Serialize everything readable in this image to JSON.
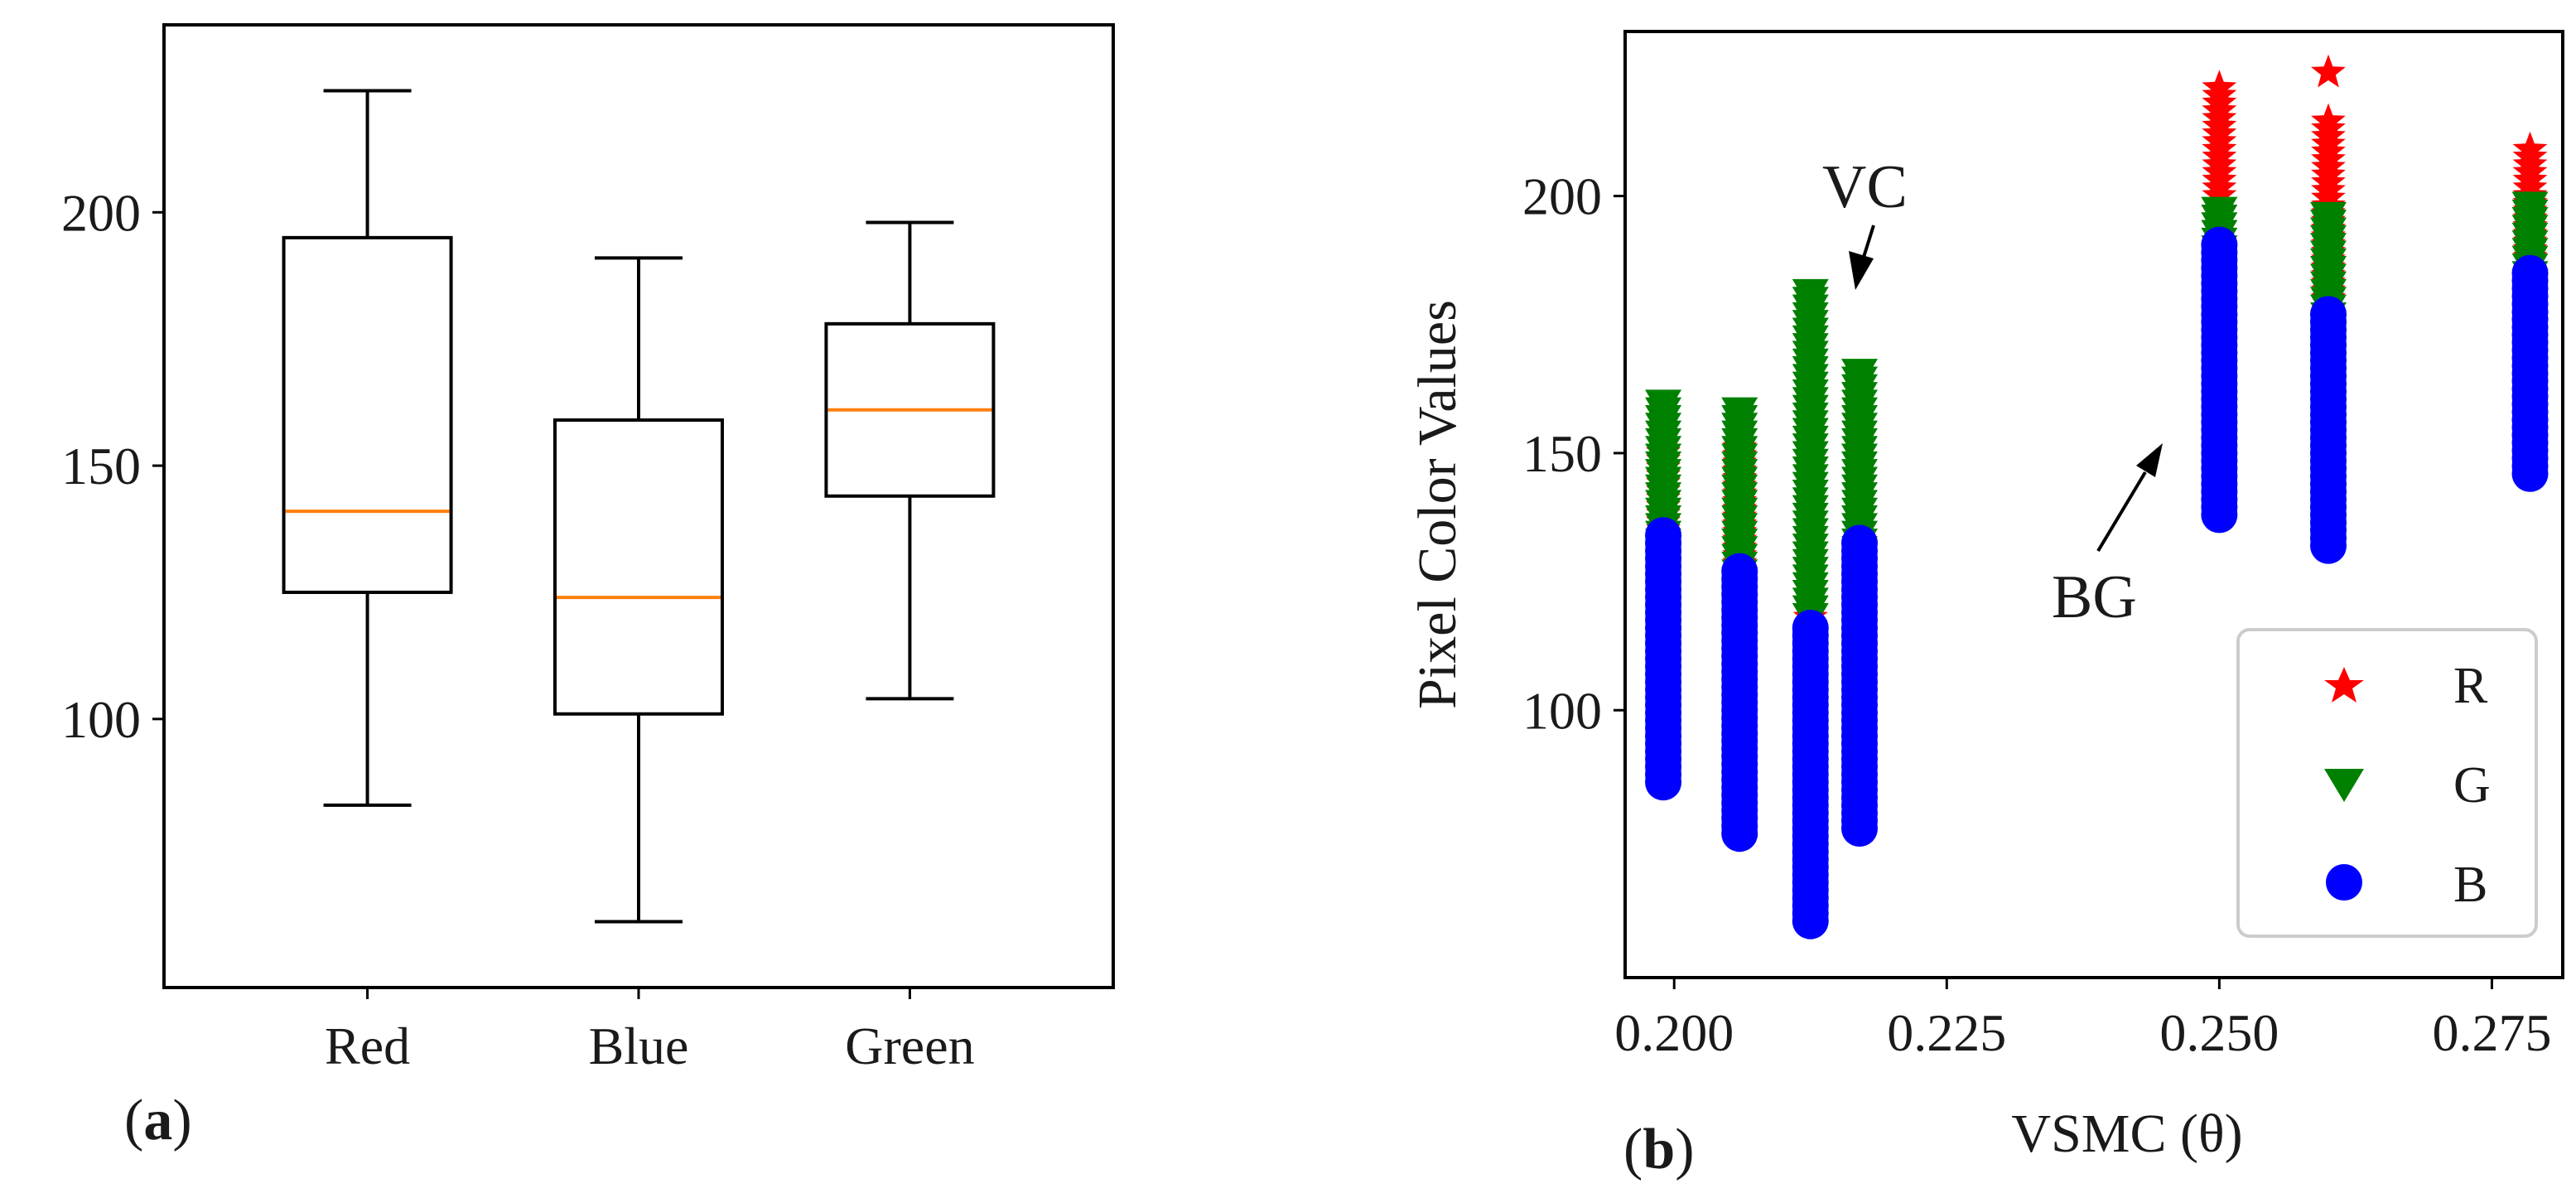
{
  "chart_data": [
    {
      "panel": "a",
      "type": "box",
      "panel_label": {
        "open": "(",
        "letter": "a",
        "close": ")"
      },
      "title": "",
      "xlabel": "",
      "ylabel": "",
      "categories": [
        "Red",
        "Blue",
        "Green"
      ],
      "boxes": [
        {
          "name": "Red",
          "whisker_low": 83,
          "q1": 125,
          "median": 141,
          "q3": 195,
          "whisker_high": 224
        },
        {
          "name": "Blue",
          "whisker_low": 60,
          "q1": 101,
          "median": 124,
          "q3": 159,
          "whisker_high": 191
        },
        {
          "name": "Green",
          "whisker_low": 104,
          "q1": 144,
          "median": 161,
          "q3": 178,
          "whisker_high": 198
        }
      ],
      "yticks": [
        100,
        150,
        200
      ],
      "ytick_labels": [
        "100",
        "150",
        "200"
      ],
      "ylim": [
        47,
        237
      ],
      "grid": false,
      "colors": {
        "box": "#000000",
        "median": "#ff7f0e"
      }
    },
    {
      "panel": "b",
      "type": "scatter",
      "panel_label": {
        "open": "(",
        "letter": "b",
        "close": ")"
      },
      "title": "",
      "xlabel": "VSMC (θ)",
      "ylabel": "Pixel Color Values",
      "xlim": [
        0.1955,
        0.2815
      ],
      "ylim": [
        48,
        232
      ],
      "xticks": [
        0.2,
        0.225,
        0.25,
        0.275
      ],
      "xtick_labels": [
        "0.200",
        "0.225",
        "0.250",
        "0.275"
      ],
      "yticks": [
        100,
        150,
        200
      ],
      "ytick_labels": [
        "100",
        "150",
        "200"
      ],
      "grid": false,
      "legend": {
        "position": "lower-right",
        "entries": [
          "R",
          "G",
          "B"
        ]
      },
      "annotations": [
        {
          "text": "VC",
          "arrow_to": [
            0.2145,
            181
          ]
        },
        {
          "text": "BG",
          "arrow_to": [
            0.2445,
            154
          ]
        }
      ],
      "series": [
        {
          "name": "R",
          "marker": "star",
          "color": "#ff0000",
          "columns": [
            {
              "x": 0.199,
              "ymin": 120,
              "ymax": 150
            },
            {
              "x": 0.206,
              "ymin": 115,
              "ymax": 152
            },
            {
              "x": 0.2125,
              "ymin": 118,
              "ymax": 158
            },
            {
              "x": 0.217,
              "ymin": 80,
              "ymax": 148
            },
            {
              "x": 0.25,
              "ymin": 185,
              "ymax": 221
            },
            {
              "x": 0.26,
              "ymin": 180,
              "ymax": 215
            },
            {
              "x": 0.2785,
              "ymin": 188,
              "ymax": 209
            }
          ],
          "extra_points": [
            {
              "x": 0.26,
              "y": 224
            }
          ]
        },
        {
          "name": "G",
          "marker": "triangle-down",
          "color": "#008000",
          "columns": [
            {
              "x": 0.199,
              "ymin": 128,
              "ymax": 160
            },
            {
              "x": 0.206,
              "ymin": 125,
              "ymax": 159
            },
            {
              "x": 0.2125,
              "ymin": 118,
              "ymax": 181
            },
            {
              "x": 0.217,
              "ymin": 128,
              "ymax": 166
            },
            {
              "x": 0.25,
              "ymin": 182,
              "ymax": 198
            },
            {
              "x": 0.26,
              "ymin": 175,
              "ymax": 196
            },
            {
              "x": 0.2785,
              "ymin": 180,
              "ymax": 199
            }
          ]
        },
        {
          "name": "B",
          "marker": "circle",
          "color": "#0000ff",
          "columns": [
            {
              "x": 0.199,
              "ymin": 86,
              "ymax": 134
            },
            {
              "x": 0.206,
              "ymin": 76,
              "ymax": 128
            },
            {
              "x": 0.2125,
              "ymin": 59,
              "ymax": 117
            },
            {
              "x": 0.217,
              "ymin": 77,
              "ymax": 133
            },
            {
              "x": 0.25,
              "ymin": 138,
              "ymax": 191
            },
            {
              "x": 0.26,
              "ymin": 132,
              "ymax": 178
            },
            {
              "x": 0.2785,
              "ymin": 146,
              "ymax": 186
            }
          ]
        }
      ]
    }
  ]
}
